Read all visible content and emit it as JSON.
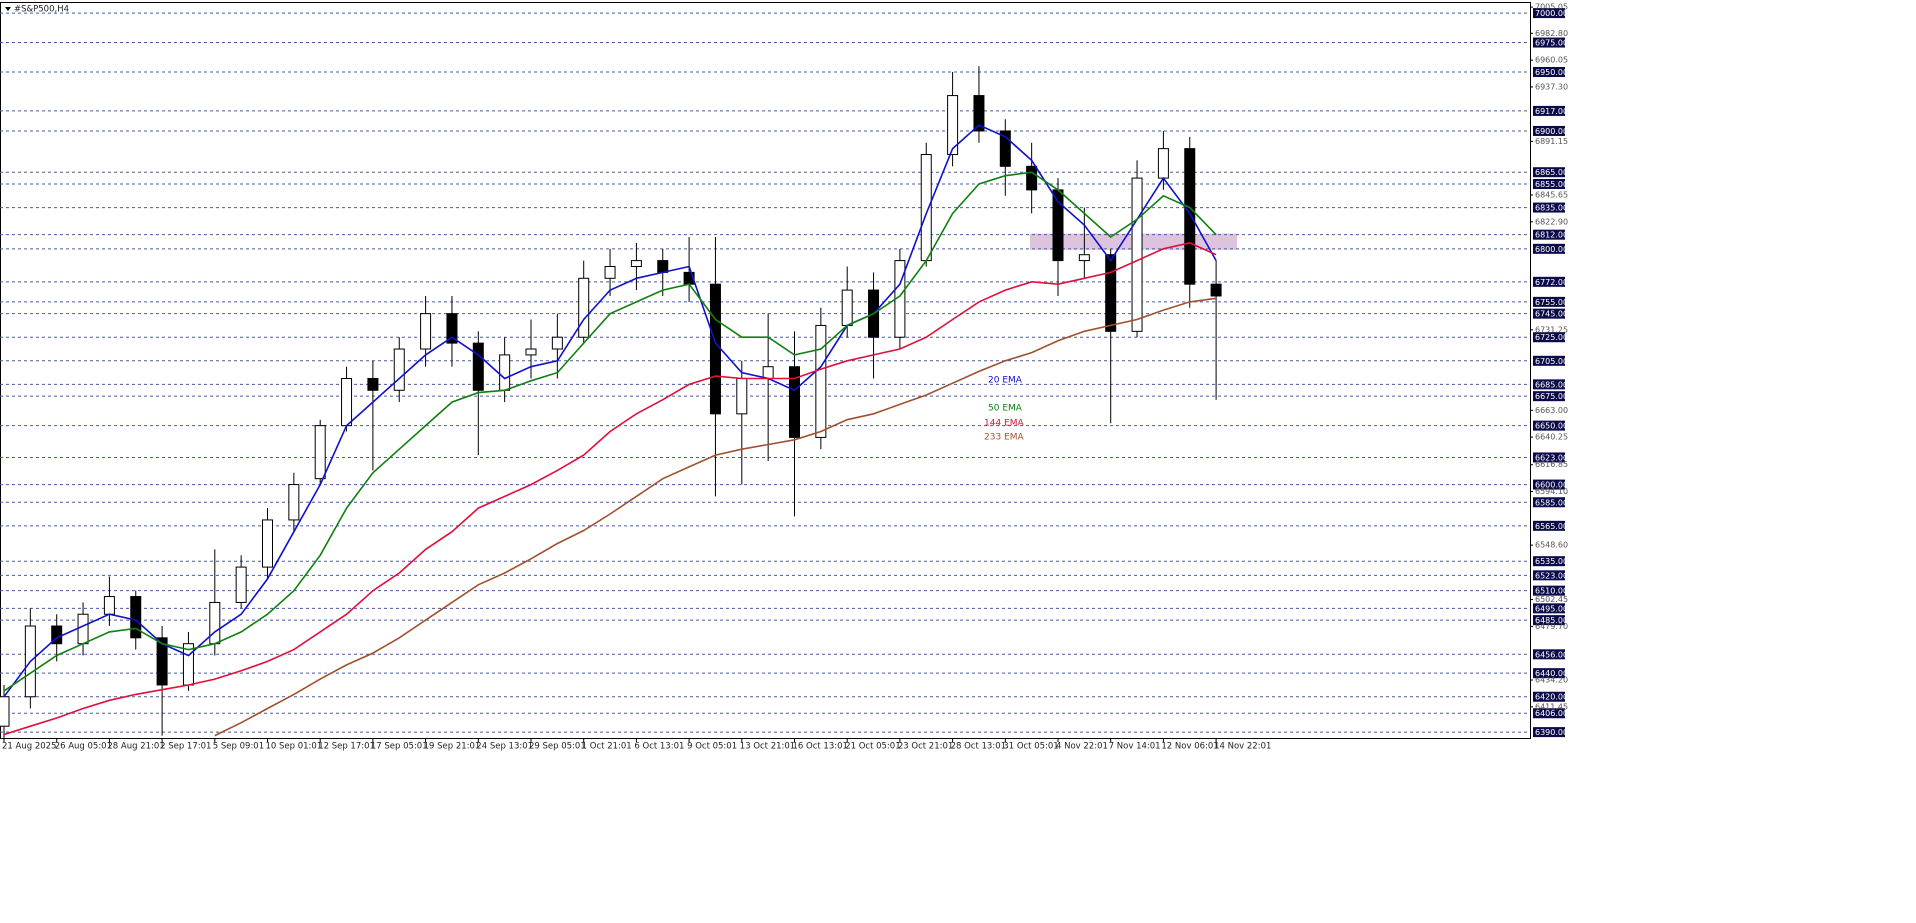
{
  "chart_data": {
    "type": "candlestick",
    "title": "#S&P500,H4",
    "categories": [
      "21 Aug 2025",
      null,
      "26 Aug 05:01",
      null,
      "28 Aug 21:01",
      null,
      "2 Sep 17:01",
      null,
      "5 Sep 09:01",
      null,
      "10 Sep 01:01",
      null,
      "12 Sep 17:01",
      null,
      "17 Sep 05:01",
      null,
      "19 Sep 21:01",
      null,
      "24 Sep 13:01",
      null,
      "29 Sep 05:01",
      null,
      "1 Oct 21:01",
      null,
      "6 Oct 13:01",
      null,
      "9 Oct 05:01",
      null,
      "13 Oct 21:01",
      null,
      "16 Oct 13:01",
      null,
      "21 Oct 05:01",
      null,
      "23 Oct 21:01",
      null,
      "28 Oct 13:01",
      null,
      "31 Oct 05:01",
      null,
      "4 Nov 22:01",
      null,
      "7 Nov 14:01",
      null,
      "12 Nov 06:01",
      null,
      "14 Nov 22:01"
    ],
    "open": [
      6395,
      6420,
      6480,
      6465,
      6490,
      6505,
      6470,
      6430,
      6465,
      6500,
      6530,
      6570,
      6605,
      6650,
      6690,
      6680,
      6715,
      6745,
      6720,
      6680,
      6710,
      6715,
      6725,
      6775,
      6785,
      6790,
      6780,
      6770,
      6660,
      6690,
      6700,
      6640,
      6735,
      6765,
      6725,
      6790,
      6880,
      6930,
      6900,
      6870,
      6850,
      6790,
      6795,
      6730,
      6860,
      6885,
      6770
    ],
    "high": [
      6430,
      6495,
      6490,
      6500,
      6522,
      6510,
      6480,
      6475,
      6545,
      6540,
      6580,
      6610,
      6655,
      6700,
      6705,
      6725,
      6760,
      6760,
      6730,
      6725,
      6740,
      6745,
      6790,
      6800,
      6805,
      6800,
      6810,
      6810,
      6705,
      6745,
      6730,
      6750,
      6785,
      6780,
      6800,
      6890,
      6950,
      6955,
      6910,
      6890,
      6860,
      6835,
      6800,
      6875,
      6900,
      6895,
      6790
    ],
    "low": [
      6385,
      6410,
      6450,
      6455,
      6480,
      6460,
      6387,
      6425,
      6455,
      6495,
      6520,
      6560,
      6600,
      6645,
      6612,
      6670,
      6700,
      6700,
      6625,
      6670,
      6690,
      6690,
      6720,
      6760,
      6765,
      6760,
      6755,
      6590,
      6600,
      6620,
      6573,
      6630,
      6725,
      6690,
      6715,
      6785,
      6870,
      6890,
      6845,
      6830,
      6760,
      6775,
      6652,
      6725,
      6850,
      6750,
      6672
    ],
    "close": [
      6420,
      6480,
      6465,
      6490,
      6505,
      6470,
      6430,
      6465,
      6500,
      6530,
      6570,
      6600,
      6650,
      6690,
      6680,
      6715,
      6745,
      6720,
      6680,
      6710,
      6715,
      6725,
      6775,
      6785,
      6790,
      6780,
      6770,
      6660,
      6690,
      6700,
      6640,
      6735,
      6765,
      6725,
      6790,
      6880,
      6930,
      6900,
      6870,
      6850,
      6790,
      6795,
      6730,
      6860,
      6885,
      6770,
      6760
    ],
    "series": [
      {
        "name": "20 EMA",
        "color": "#1010d0",
        "values": [
          6420,
          6450,
          6470,
          6480,
          6490,
          6485,
          6465,
          6455,
          6475,
          6490,
          6520,
          6560,
          6600,
          6650,
          6670,
          6690,
          6710,
          6725,
          6710,
          6690,
          6700,
          6705,
          6740,
          6765,
          6775,
          6780,
          6785,
          6720,
          6695,
          6690,
          6680,
          6700,
          6735,
          6745,
          6770,
          6830,
          6885,
          6905,
          6895,
          6875,
          6840,
          6820,
          6790,
          6825,
          6860,
          6830,
          6790
        ]
      },
      {
        "name": "50 EMA",
        "color": "#108010",
        "values": [
          6425,
          6440,
          6455,
          6465,
          6475,
          6478,
          6465,
          6460,
          6465,
          6475,
          6490,
          6510,
          6540,
          6580,
          6610,
          6630,
          6650,
          6670,
          6678,
          6680,
          6688,
          6695,
          6720,
          6745,
          6755,
          6765,
          6770,
          6740,
          6725,
          6725,
          6710,
          6715,
          6735,
          6745,
          6760,
          6790,
          6830,
          6855,
          6862,
          6865,
          6850,
          6830,
          6810,
          6825,
          6845,
          6835,
          6812
        ]
      },
      {
        "name": "144 EMA",
        "color": "#e0103a",
        "values": [
          6388,
          6395,
          6402,
          6410,
          6417,
          6422,
          6426,
          6430,
          6435,
          6442,
          6450,
          6460,
          6475,
          6490,
          6510,
          6525,
          6545,
          6560,
          6580,
          6590,
          6600,
          6612,
          6625,
          6645,
          6660,
          6672,
          6685,
          6692,
          6690,
          6690,
          6690,
          6698,
          6705,
          6710,
          6715,
          6725,
          6740,
          6755,
          6765,
          6772,
          6770,
          6775,
          6780,
          6790,
          6800,
          6805,
          6795
        ]
      },
      {
        "name": "233 EMA",
        "color": "#a0522d",
        "values": [
          null,
          null,
          null,
          null,
          null,
          null,
          null,
          null,
          6387,
          6398,
          6410,
          6422,
          6435,
          6447,
          6457,
          6470,
          6485,
          6500,
          6515,
          6525,
          6537,
          6550,
          6561,
          6575,
          6590,
          6605,
          6615,
          6625,
          6630,
          6634,
          6638,
          6645,
          6655,
          6660,
          6668,
          6676,
          6686,
          6696,
          6705,
          6712,
          6722,
          6730,
          6735,
          6740,
          6748,
          6755,
          6758
        ]
      }
    ],
    "zone": [
      6800,
      6812
    ],
    "zone_color": "#d8b8d8",
    "ylim": [
      6385,
      7006
    ],
    "yticks": [
      {
        "value": 7005.05,
        "label": "7005.05"
      },
      {
        "value": 6982.8,
        "label": "6982.80"
      },
      {
        "value": 6960.05,
        "label": "6960.05"
      },
      {
        "value": 6937.3,
        "label": "6937.30"
      },
      {
        "value": 6891.15,
        "label": "6891.15"
      },
      {
        "value": 6845.65,
        "label": "6845.65"
      },
      {
        "value": 6822.9,
        "label": "6822.90"
      },
      {
        "value": 6731.25,
        "label": "6731.25"
      },
      {
        "value": 6663,
        "label": "6663.00"
      },
      {
        "value": 6640.25,
        "label": "6640.25"
      },
      {
        "value": 6616.85,
        "label": "6616.85"
      },
      {
        "value": 6594.1,
        "label": "6594.10"
      },
      {
        "value": 6548.6,
        "label": "6548.60"
      },
      {
        "value": 6502.45,
        "label": "6502.45"
      },
      {
        "value": 6479.7,
        "label": "6479.70"
      },
      {
        "value": 6434.2,
        "label": "6434.20"
      },
      {
        "value": 6411.45,
        "label": "6411.45"
      }
    ],
    "levels": [
      {
        "value": 7000,
        "label": "7000.00"
      },
      {
        "value": 6975,
        "label": "6975.00"
      },
      {
        "value": 6950,
        "label": "6950.00"
      },
      {
        "value": 6917,
        "label": "6917.00"
      },
      {
        "value": 6900,
        "label": "6900.00"
      },
      {
        "value": 6865,
        "label": "6865.00"
      },
      {
        "value": 6855,
        "label": "6855.00"
      },
      {
        "value": 6835,
        "label": "6835.00"
      },
      {
        "value": 6812,
        "label": "6812.00"
      },
      {
        "value": 6800,
        "label": "6800.00"
      },
      {
        "value": 6772,
        "label": "6772.00"
      },
      {
        "value": 6755,
        "label": "6755.00"
      },
      {
        "value": 6745,
        "label": "6745.00"
      },
      {
        "value": 6725,
        "label": "6725.00"
      },
      {
        "value": 6705,
        "label": "6705.00"
      },
      {
        "value": 6685,
        "label": "6685.00"
      },
      {
        "value": 6675,
        "label": "6675.00"
      },
      {
        "value": 6650,
        "label": "6650.00"
      },
      {
        "value": 6623,
        "label": "6623.00"
      },
      {
        "value": 6600,
        "label": "6600.00"
      },
      {
        "value": 6585,
        "label": "6585.00"
      },
      {
        "value": 6565,
        "label": "6565.00"
      },
      {
        "value": 6535,
        "label": "6535.00"
      },
      {
        "value": 6523,
        "label": "6523.00"
      },
      {
        "value": 6510,
        "label": "6510.00"
      },
      {
        "value": 6495,
        "label": "6495.00"
      },
      {
        "value": 6485,
        "label": "6485.00"
      },
      {
        "value": 6456,
        "label": "6456.00"
      },
      {
        "value": 6440,
        "label": "6440.00"
      },
      {
        "value": 6420,
        "label": "6420.00"
      },
      {
        "value": 6406,
        "label": "6406.00"
      },
      {
        "value": 6390,
        "label": "6390.00"
      }
    ],
    "level_color": "#4a5aa0",
    "grid": false
  }
}
